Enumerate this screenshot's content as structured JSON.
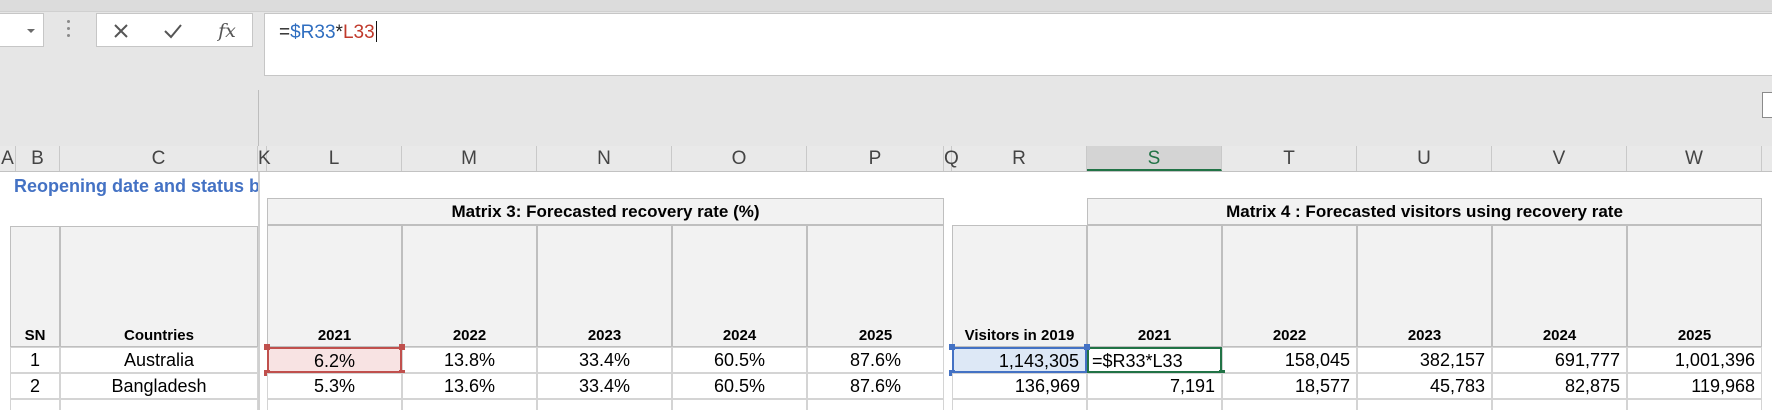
{
  "formula_bar": {
    "formula_prefix": "=",
    "ref1": "$R33",
    "operator": "*",
    "ref2": "L33",
    "icons": [
      "cancel-icon",
      "enter-icon",
      "insert-function-icon"
    ]
  },
  "columns": [
    "A",
    "B",
    "C",
    "K",
    "L",
    "M",
    "N",
    "O",
    "P",
    "Q",
    "R",
    "S",
    "T",
    "U",
    "V",
    "W"
  ],
  "selected_column": "S",
  "sheet": {
    "title": "Reopening date and status by",
    "matrix3_title": "Matrix 3: Forecasted recovery rate (%)",
    "matrix4_title": "Matrix 4 : Forecasted visitors using recovery rate",
    "headers": {
      "sn": "SN",
      "countries": "Countries",
      "visitors_2019": "Visitors in 2019",
      "years": [
        "2021",
        "2022",
        "2023",
        "2024",
        "2025"
      ]
    },
    "rows": [
      {
        "sn": "1",
        "country": "Australia",
        "rates": [
          "6.2%",
          "13.8%",
          "33.4%",
          "60.5%",
          "87.6%"
        ],
        "visitors_2019": "1,143,305",
        "forecast": [
          "=$R33*L33",
          "158,045",
          "382,157",
          "691,777",
          "1,001,396"
        ]
      },
      {
        "sn": "2",
        "country": "Bangladesh",
        "rates": [
          "5.3%",
          "13.6%",
          "33.4%",
          "60.5%",
          "87.6%"
        ],
        "visitors_2019": "136,969",
        "forecast": [
          "7,191",
          "18,577",
          "45,783",
          "82,875",
          "119,968"
        ]
      }
    ]
  },
  "colors": {
    "accent_green": "#217346",
    "title_blue": "#4472c4",
    "ref_red": "#c0392b",
    "ref_blue": "#2f6ec0"
  }
}
